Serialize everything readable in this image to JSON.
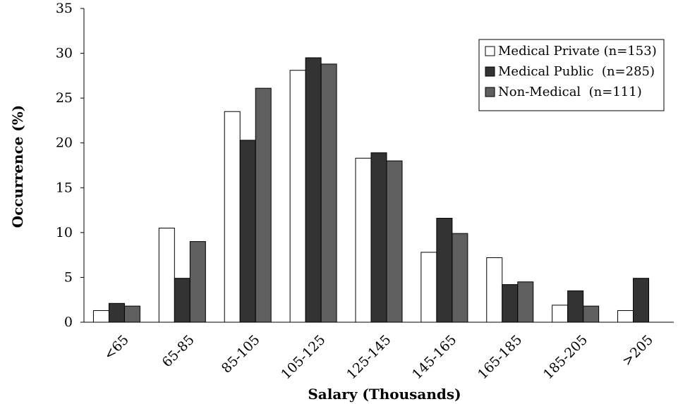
{
  "chart_data": {
    "type": "bar",
    "title": "",
    "xlabel": "Salary (Thousands)",
    "ylabel": "Occurrence (%)",
    "ylim": [
      0,
      35
    ],
    "yticks": [
      "0",
      "5",
      "10",
      "15",
      "20",
      "25",
      "30",
      "35"
    ],
    "categories": [
      "<65",
      "65-85",
      "85-105",
      "105-125",
      "125-145",
      "145-165",
      "165-185",
      "185-205",
      ">205"
    ],
    "series": [
      {
        "name": "Medical Private (n=153)",
        "color": "#ffffff",
        "values": [
          1.3,
          10.5,
          23.5,
          28.1,
          18.3,
          7.8,
          7.2,
          1.9,
          1.3
        ]
      },
      {
        "name": "Medical Public  (n=285)",
        "color": "#333333",
        "values": [
          2.1,
          4.9,
          20.3,
          29.5,
          18.9,
          11.6,
          4.2,
          3.5,
          4.9
        ]
      },
      {
        "name": "Non-Medical  (n=111)",
        "color": "#5f5f5f",
        "values": [
          1.8,
          9.0,
          26.1,
          28.8,
          18.0,
          9.9,
          4.5,
          1.8,
          0
        ]
      }
    ],
    "grid": false,
    "legend_position": "top-right"
  }
}
